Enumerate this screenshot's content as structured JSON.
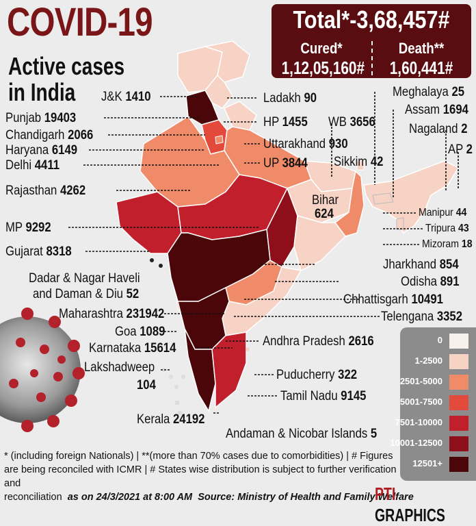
{
  "header": {
    "title": "COVID-19",
    "subtitle_line1": "Active cases",
    "subtitle_line2": "in India"
  },
  "totals": {
    "total_label": "Total*-3,68,457#",
    "cured_label": "Cured*",
    "cured_value": "1,12,05,160#",
    "death_label": "Death**",
    "death_value": "1,60,441#"
  },
  "states": [
    {
      "name": "J&K",
      "value": "1410"
    },
    {
      "name": "Ladakh",
      "value": "90"
    },
    {
      "name": "Punjab",
      "value": "19403"
    },
    {
      "name": "Chandigarh",
      "value": "2066"
    },
    {
      "name": "Haryana",
      "value": "6149"
    },
    {
      "name": "Delhi",
      "value": "4411"
    },
    {
      "name": "HP",
      "value": "1455"
    },
    {
      "name": "Uttarakhand",
      "value": "930"
    },
    {
      "name": "UP",
      "value": "3844"
    },
    {
      "name": "Rajasthan",
      "value": "4262"
    },
    {
      "name": "MP",
      "value": "9292"
    },
    {
      "name": "Gujarat",
      "value": "8318"
    },
    {
      "name": "Dadar & Nagar Haveli",
      "value": ""
    },
    {
      "name": "and Daman & Diu",
      "value": "52"
    },
    {
      "name": "Maharashtra",
      "value": "231942"
    },
    {
      "name": "Goa",
      "value": "1089"
    },
    {
      "name": "Karnataka",
      "value": "15614"
    },
    {
      "name": "Lakshadweep",
      "value": "104"
    },
    {
      "name": "Kerala",
      "value": "24192"
    },
    {
      "name": "Meghalaya",
      "value": "25"
    },
    {
      "name": "Assam",
      "value": "1694"
    },
    {
      "name": "Nagaland",
      "value": "2"
    },
    {
      "name": "AP",
      "value": "2"
    },
    {
      "name": "WB",
      "value": "3656"
    },
    {
      "name": "Sikkim",
      "value": "42"
    },
    {
      "name": "Bihar",
      "value": "624"
    },
    {
      "name": "Manipur",
      "value": "44"
    },
    {
      "name": "Tripura",
      "value": "43"
    },
    {
      "name": "Mizoram",
      "value": "18"
    },
    {
      "name": "Jharkhand",
      "value": "854"
    },
    {
      "name": "Odisha",
      "value": "891"
    },
    {
      "name": "Chhattisgarh",
      "value": "10491"
    },
    {
      "name": "Telengana",
      "value": "3352"
    },
    {
      "name": "Andhra Pradesh",
      "value": "2616"
    },
    {
      "name": "Puducherry",
      "value": "322"
    },
    {
      "name": "Tamil Nadu",
      "value": "9145"
    },
    {
      "name": "Andaman & Nicobar Islands",
      "value": "5"
    }
  ],
  "legend": [
    {
      "label": "0",
      "color": "#f7f1ee"
    },
    {
      "label": "1-2500",
      "color": "#f6d3c4"
    },
    {
      "label": "2501-5000",
      "color": "#f08b6a"
    },
    {
      "label": "5001-7500",
      "color": "#e34a3c"
    },
    {
      "label": "7501-10000",
      "color": "#c21f2d"
    },
    {
      "label": "10001-12500",
      "color": "#8e0f1a"
    },
    {
      "label": "12501+",
      "color": "#4a0608"
    }
  ],
  "footnote": {
    "line1": "* (including foreign Nationals) | **(more than 70% cases due to comorbidities) | # Figures",
    "line2": "are being reconciled with ICMR | # States wise distribution is subject to further verification and",
    "line3_a": "reconciliation",
    "line3_b": "as on 24/3/2021 at 8:00 AM",
    "line3_c": "Source: Ministry of Health and Family Welfare"
  },
  "credit": {
    "pti": "PTI",
    "graphics": "GRAPHICS"
  }
}
